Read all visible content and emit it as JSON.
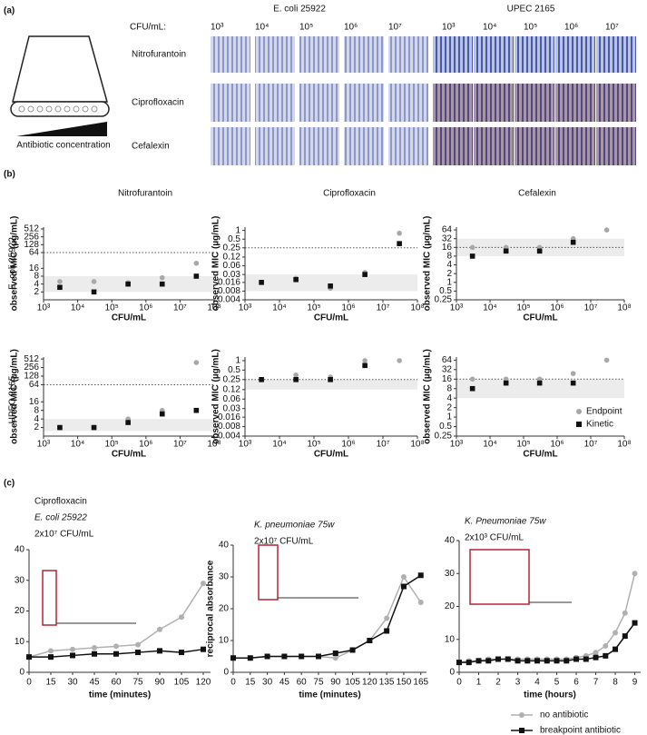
{
  "panel_labels": [
    "(a)",
    "(b)",
    "(c)"
  ],
  "panel_a": {
    "strains": [
      "E. coli 25922",
      "UPEC 2165"
    ],
    "cfu_label": "CFU/mL:",
    "densities": [
      "10³",
      "10⁴",
      "10⁵",
      "10⁶",
      "10⁷"
    ],
    "antibiotics": [
      "Nitrofurantoin",
      "Ciprofloxacin",
      "Cefalexin"
    ],
    "gradient_label": "Antibiotic concentration"
  },
  "chart_data": [
    {
      "type": "scatter",
      "log_x": true,
      "log_y": true,
      "x_label": "CFU/mL",
      "y_label": "observed MIC (µg/mL)",
      "xlim": [
        1000,
        100000000
      ],
      "xticks": [
        {
          "value": 1000,
          "label": "10³"
        },
        {
          "value": 10000,
          "label": "10⁴"
        },
        {
          "value": 100000,
          "label": "10⁵"
        },
        {
          "value": 1000000,
          "label": "10⁶"
        },
        {
          "value": 10000000,
          "label": "10⁷"
        },
        {
          "value": 100000000,
          "label": "10⁸"
        }
      ],
      "ylim": [
        1,
        600
      ],
      "yticks": [
        2,
        4,
        8,
        16,
        64,
        128,
        256,
        512
      ],
      "reference_line": 64,
      "shaded_band": [
        2,
        8
      ],
      "series": [
        {
          "color": "#a8a8a8",
          "marker": "circle",
          "x": [
            3000,
            30000,
            300000,
            3000000,
            30000000
          ],
          "values": [
            5,
            5,
            4.5,
            7,
            25
          ]
        },
        {
          "color": "#111111",
          "marker": "square",
          "x": [
            3000,
            30000,
            300000,
            3000000,
            30000000
          ],
          "values": [
            3,
            2,
            4,
            4,
            8
          ]
        }
      ]
    },
    {
      "type": "scatter",
      "log_x": true,
      "log_y": true,
      "x_label": "CFU/mL",
      "y_label": "observed MIC (µg/mL)",
      "xlim": [
        1000,
        100000000
      ],
      "xticks": [
        {
          "value": 1000,
          "label": "10³"
        },
        {
          "value": 10000,
          "label": "10⁴"
        },
        {
          "value": 100000,
          "label": "10⁵"
        },
        {
          "value": 1000000,
          "label": "10⁶"
        },
        {
          "value": 10000000,
          "label": "10⁷"
        },
        {
          "value": 100000000,
          "label": "10⁸"
        }
      ],
      "ylim": [
        0.004,
        1.3
      ],
      "yticks": [
        0.004,
        0.008,
        0.016,
        0.03,
        0.06,
        0.12,
        0.25,
        0.5,
        1
      ],
      "reference_line": 0.25,
      "shaded_band": [
        0.008,
        0.03
      ],
      "series": [
        {
          "color": "#a8a8a8",
          "marker": "circle",
          "x": [
            3000,
            30000,
            300000,
            3000000,
            30000000
          ],
          "values": [
            0.016,
            0.022,
            0.01,
            0.035,
            0.8
          ]
        },
        {
          "color": "#111111",
          "marker": "square",
          "x": [
            3000,
            30000,
            300000,
            3000000,
            30000000
          ],
          "values": [
            0.016,
            0.02,
            0.012,
            0.03,
            0.35
          ]
        }
      ]
    },
    {
      "type": "scatter",
      "log_x": true,
      "log_y": true,
      "x_label": "CFU/mL",
      "y_label": "observed MIC (µg/mL)",
      "xlim": [
        1000,
        100000000
      ],
      "xticks": [
        {
          "value": 1000,
          "label": "10³"
        },
        {
          "value": 10000,
          "label": "10⁴"
        },
        {
          "value": 100000,
          "label": "10⁵"
        },
        {
          "value": 1000000,
          "label": "10⁶"
        },
        {
          "value": 10000000,
          "label": "10⁷"
        },
        {
          "value": 100000000,
          "label": "10⁸"
        }
      ],
      "ylim": [
        0.25,
        80
      ],
      "yticks": [
        0.25,
        0.5,
        1,
        2,
        4,
        8,
        16,
        32,
        64
      ],
      "reference_line": 16,
      "shaded_band": [
        8,
        32
      ],
      "series": [
        {
          "color": "#a8a8a8",
          "marker": "circle",
          "x": [
            3000,
            30000,
            300000,
            3000000,
            30000000
          ],
          "values": [
            16,
            16,
            16,
            32,
            64
          ]
        },
        {
          "color": "#111111",
          "marker": "square",
          "x": [
            3000,
            30000,
            300000,
            3000000,
            30000000
          ],
          "values": [
            8,
            12,
            12,
            24,
            null
          ]
        }
      ]
    },
    {
      "type": "scatter",
      "log_x": true,
      "log_y": true,
      "x_label": "CFU/mL",
      "y_label": "observed MIC (µg/mL)",
      "xlim": [
        1000,
        100000000
      ],
      "xticks": [
        {
          "value": 1000,
          "label": "10³"
        },
        {
          "value": 10000,
          "label": "10⁴"
        },
        {
          "value": 100000,
          "label": "10⁵"
        },
        {
          "value": 1000000,
          "label": "10⁶"
        },
        {
          "value": 10000000,
          "label": "10⁷"
        },
        {
          "value": 100000000,
          "label": "10⁸"
        }
      ],
      "ylim": [
        1,
        600
      ],
      "yticks": [
        2,
        4,
        8,
        16,
        64,
        128,
        256,
        512
      ],
      "reference_line": 64,
      "shaded_band": [
        1.5,
        4
      ],
      "series": [
        {
          "color": "#a8a8a8",
          "marker": "circle",
          "x": [
            3000,
            30000,
            300000,
            3000000,
            30000000
          ],
          "values": [
            2,
            2,
            4,
            8,
            384
          ]
        },
        {
          "color": "#111111",
          "marker": "square",
          "x": [
            3000,
            30000,
            300000,
            3000000,
            30000000
          ],
          "values": [
            2,
            2,
            3,
            6,
            8
          ]
        }
      ]
    },
    {
      "type": "scatter",
      "log_x": true,
      "log_y": true,
      "x_label": "CFU/mL",
      "y_label": "observed MIC (µg/mL)",
      "xlim": [
        1000,
        100000000
      ],
      "xticks": [
        {
          "value": 1000,
          "label": "10³"
        },
        {
          "value": 10000,
          "label": "10⁴"
        },
        {
          "value": 100000,
          "label": "10⁵"
        },
        {
          "value": 1000000,
          "label": "10⁶"
        },
        {
          "value": 10000000,
          "label": "10⁷"
        },
        {
          "value": 100000000,
          "label": "10⁸"
        }
      ],
      "ylim": [
        0.004,
        1.3
      ],
      "yticks": [
        0.004,
        0.008,
        0.016,
        0.03,
        0.06,
        0.12,
        0.25,
        0.5,
        1
      ],
      "reference_line": 0.25,
      "shaded_band": [
        0.12,
        0.25
      ],
      "series": [
        {
          "color": "#a8a8a8",
          "marker": "circle",
          "x": [
            3000,
            30000,
            300000,
            3000000,
            30000000
          ],
          "values": [
            0.25,
            0.35,
            0.3,
            1,
            1
          ]
        },
        {
          "color": "#111111",
          "marker": "square",
          "x": [
            3000,
            30000,
            300000,
            3000000,
            30000000
          ],
          "values": [
            0.25,
            0.25,
            0.25,
            0.7,
            null
          ]
        }
      ]
    },
    {
      "type": "scatter",
      "log_x": true,
      "log_y": true,
      "x_label": "CFU/mL",
      "y_label": "observed MIC (µg/mL)",
      "xlim": [
        1000,
        100000000
      ],
      "xticks": [
        {
          "value": 1000,
          "label": "10³"
        },
        {
          "value": 10000,
          "label": "10⁴"
        },
        {
          "value": 100000,
          "label": "10⁵"
        },
        {
          "value": 1000000,
          "label": "10⁶"
        },
        {
          "value": 10000000,
          "label": "10⁷"
        },
        {
          "value": 100000000,
          "label": "10⁸"
        }
      ],
      "ylim": [
        0.25,
        80
      ],
      "yticks": [
        0.25,
        0.5,
        1,
        2,
        4,
        8,
        16,
        32,
        64
      ],
      "reference_line": 16,
      "shaded_band": [
        4,
        16
      ],
      "legend": "lower right",
      "series": [
        {
          "name": "Endpoint",
          "color": "#a8a8a8",
          "marker": "circle",
          "x": [
            3000,
            30000,
            300000,
            3000000,
            30000000
          ],
          "values": [
            16,
            16,
            16,
            24,
            64
          ]
        },
        {
          "name": "Kinetic",
          "color": "#111111",
          "marker": "square",
          "x": [
            3000,
            30000,
            300000,
            3000000,
            30000000
          ],
          "values": [
            8,
            12,
            12,
            12,
            null
          ]
        }
      ]
    },
    {
      "type": "line",
      "title": [
        "Ciprofloxacin",
        "E. coli 25922",
        "2x10⁷ CFU/mL"
      ],
      "x_label": "time (minutes)",
      "x": [
        0,
        15,
        30,
        45,
        60,
        75,
        90,
        105,
        120
      ],
      "xlim": [
        0,
        125
      ],
      "xticks": [
        0,
        15,
        30,
        45,
        60,
        75,
        90,
        105,
        120
      ],
      "ylim": [
        0,
        40
      ],
      "yticks": [
        0,
        10,
        20,
        30,
        40
      ],
      "series": [
        {
          "color": "#b0b0b0",
          "marker": "circle",
          "values": [
            5,
            7,
            7.5,
            8,
            8.5,
            9,
            14,
            18,
            29
          ]
        },
        {
          "color": "#111111",
          "marker": "square",
          "values": [
            5,
            5,
            5.5,
            6,
            6,
            6.5,
            7,
            6.5,
            7.5
          ]
        }
      ]
    },
    {
      "type": "line",
      "title": [
        "K. pneumoniae 75w",
        "2x10⁷ CFU/mL"
      ],
      "x_label": "time (minutes)",
      "y_label": "reciprocal absorbance",
      "x": [
        0,
        15,
        30,
        45,
        60,
        75,
        90,
        105,
        120,
        135,
        150,
        165
      ],
      "xlim": [
        0,
        170
      ],
      "xticks": [
        0,
        15,
        30,
        45,
        60,
        75,
        90,
        105,
        120,
        135,
        150,
        165
      ],
      "ylim": [
        0,
        40
      ],
      "yticks": [
        0,
        10,
        20,
        30,
        40
      ],
      "series": [
        {
          "color": "#b0b0b0",
          "marker": "circle",
          "values": [
            4.5,
            4.5,
            5,
            5,
            5,
            5,
            4.5,
            7,
            10,
            17,
            30,
            22
          ]
        },
        {
          "color": "#111111",
          "marker": "square",
          "values": [
            4.5,
            4.5,
            5,
            5,
            5,
            5,
            6,
            7,
            10,
            13,
            27,
            30.5
          ]
        }
      ]
    },
    {
      "type": "line",
      "title": [
        "K. Pneumoniae 75w",
        "2x10³ CFU/mL"
      ],
      "x_label": "time (hours)",
      "legend": "below",
      "x": [
        0,
        0.5,
        1,
        1.5,
        2,
        2.5,
        3,
        3.5,
        4,
        4.5,
        5,
        5.5,
        6,
        6.5,
        7,
        7.5,
        8,
        8.5,
        9
      ],
      "xlim": [
        0,
        9.3
      ],
      "xticks": [
        0,
        1,
        2,
        3,
        4,
        5,
        6,
        7,
        8,
        9
      ],
      "ylim": [
        0,
        40
      ],
      "yticks": [
        0,
        10,
        20,
        30,
        40
      ],
      "series": [
        {
          "name": "no antibiotic",
          "color": "#b0b0b0",
          "marker": "circle",
          "values": [
            3,
            3.5,
            3.5,
            4,
            4,
            4,
            4,
            4,
            4,
            4,
            4,
            4,
            4.5,
            5,
            6,
            8,
            12,
            18,
            30
          ]
        },
        {
          "name": "breakpoint antibiotic",
          "color": "#111111",
          "marker": "square",
          "values": [
            3,
            3,
            3.5,
            3.5,
            4,
            4,
            3.5,
            3.5,
            3.5,
            3.5,
            3.5,
            3.5,
            4,
            4,
            4.5,
            5,
            7,
            11,
            15
          ]
        }
      ]
    }
  ]
}
